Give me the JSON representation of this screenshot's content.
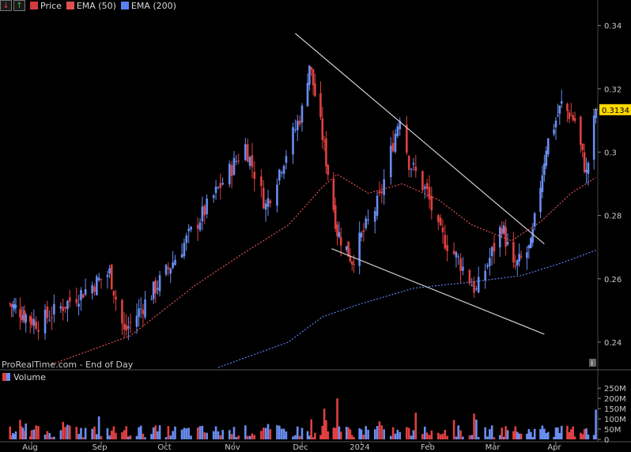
{
  "legend": {
    "down_button": "↓",
    "up_button": "↑",
    "items": [
      {
        "label": "Price",
        "color": "#d23c3c"
      },
      {
        "label": "EMA (50)",
        "color": "#e05050"
      },
      {
        "label": "EMA (200)",
        "color": "#5a7ff0"
      }
    ]
  },
  "watermark": "ProRealTime.com - End of Day",
  "info_icon": "i",
  "volume_label": "Volume",
  "colors": {
    "up": "#6a8ef0",
    "down": "#e04040",
    "trendline": "#cfcfcf",
    "ema50": "#e05050",
    "ema200": "#5a7ff0",
    "price_tag_bg": "#ffd800"
  },
  "chart_data": [
    {
      "type": "candlestick",
      "y_ticks": [
        "0.24",
        "0.26",
        "0.28",
        "0.3",
        "0.32",
        "0.34"
      ],
      "ylim": [
        0.2315,
        0.3443
      ],
      "x_tick_labels": [
        "Aug",
        "Sep",
        "Oct",
        "Nov",
        "Dec",
        "2024",
        "Feb",
        "Mar",
        "Apr"
      ],
      "x_tick_dates": [
        "2023-08-01",
        "2023-09-01",
        "2023-10-02",
        "2023-11-01",
        "2023-12-01",
        "2024-01-02",
        "2024-02-01",
        "2024-03-01",
        "2024-04-02"
      ],
      "last_price_label": "0.3134",
      "last_price": 0.3134,
      "key_closes": [
        {
          "date": "2023-07-17",
          "value": 0.252
        },
        {
          "date": "2023-08-04",
          "value": 0.246
        },
        {
          "date": "2023-09-05",
          "value": 0.262
        },
        {
          "date": "2023-09-12",
          "value": 0.243
        },
        {
          "date": "2023-10-02",
          "value": 0.262
        },
        {
          "date": "2023-11-06",
          "value": 0.302
        },
        {
          "date": "2023-11-15",
          "value": 0.283
        },
        {
          "date": "2023-12-01",
          "value": 0.313
        },
        {
          "date": "2023-12-05",
          "value": 0.328
        },
        {
          "date": "2023-12-12",
          "value": 0.305
        },
        {
          "date": "2023-12-20",
          "value": 0.275
        },
        {
          "date": "2023-12-28",
          "value": 0.266
        },
        {
          "date": "2024-01-10",
          "value": 0.285
        },
        {
          "date": "2024-01-19",
          "value": 0.312
        },
        {
          "date": "2024-01-23",
          "value": 0.297
        },
        {
          "date": "2024-01-31",
          "value": 0.287
        },
        {
          "date": "2024-02-05",
          "value": 0.275
        },
        {
          "date": "2024-02-14",
          "value": 0.266
        },
        {
          "date": "2024-02-22",
          "value": 0.256
        },
        {
          "date": "2024-03-05",
          "value": 0.277
        },
        {
          "date": "2024-03-11",
          "value": 0.263
        },
        {
          "date": "2024-03-20",
          "value": 0.27
        },
        {
          "date": "2024-03-28",
          "value": 0.302
        },
        {
          "date": "2024-04-05",
          "value": 0.315
        },
        {
          "date": "2024-04-12",
          "value": 0.31
        },
        {
          "date": "2024-04-18",
          "value": 0.293
        },
        {
          "date": "2024-04-23",
          "value": 0.3134
        }
      ],
      "ema50": [
        {
          "date": "2023-08-10",
          "value": 0.233
        },
        {
          "date": "2023-09-15",
          "value": 0.242
        },
        {
          "date": "2023-10-15",
          "value": 0.258
        },
        {
          "date": "2023-11-05",
          "value": 0.268
        },
        {
          "date": "2023-11-25",
          "value": 0.277
        },
        {
          "date": "2023-12-12",
          "value": 0.289
        },
        {
          "date": "2023-12-20",
          "value": 0.293
        },
        {
          "date": "2024-01-05",
          "value": 0.287
        },
        {
          "date": "2024-01-20",
          "value": 0.29
        },
        {
          "date": "2024-02-05",
          "value": 0.285
        },
        {
          "date": "2024-02-20",
          "value": 0.277
        },
        {
          "date": "2024-03-10",
          "value": 0.272
        },
        {
          "date": "2024-03-25",
          "value": 0.278
        },
        {
          "date": "2024-04-10",
          "value": 0.287
        },
        {
          "date": "2024-04-23",
          "value": 0.292
        }
      ],
      "ema200": [
        {
          "date": "2023-10-25",
          "value": 0.232
        },
        {
          "date": "2023-11-25",
          "value": 0.24
        },
        {
          "date": "2023-12-12",
          "value": 0.248
        },
        {
          "date": "2024-01-01",
          "value": 0.252
        },
        {
          "date": "2024-01-25",
          "value": 0.257
        },
        {
          "date": "2024-02-20",
          "value": 0.259
        },
        {
          "date": "2024-03-15",
          "value": 0.261
        },
        {
          "date": "2024-04-05",
          "value": 0.265
        },
        {
          "date": "2024-04-23",
          "value": 0.269
        }
      ],
      "trendlines": [
        {
          "name": "upper",
          "from": {
            "date": "2023-11-28",
            "value": 0.3375
          },
          "to": {
            "date": "2024-03-27",
            "value": 0.271
          }
        },
        {
          "name": "lower",
          "from": {
            "date": "2023-12-17",
            "value": 0.2695
          },
          "to": {
            "date": "2024-03-27",
            "value": 0.2425
          }
        }
      ]
    },
    {
      "type": "bar",
      "title": "Volume",
      "y_ticks": [
        "0",
        "50M",
        "100M",
        "150M",
        "200M",
        "250M"
      ],
      "ylim": [
        0,
        270000000
      ],
      "notable_volumes": [
        {
          "date": "2023-12-13",
          "value": 150000000
        },
        {
          "date": "2023-12-20",
          "value": 200000000
        },
        {
          "date": "2024-01-26",
          "value": 130000000
        },
        {
          "date": "2024-02-12",
          "value": 95000000
        },
        {
          "date": "2024-04-23",
          "value": 145000000
        }
      ]
    }
  ]
}
